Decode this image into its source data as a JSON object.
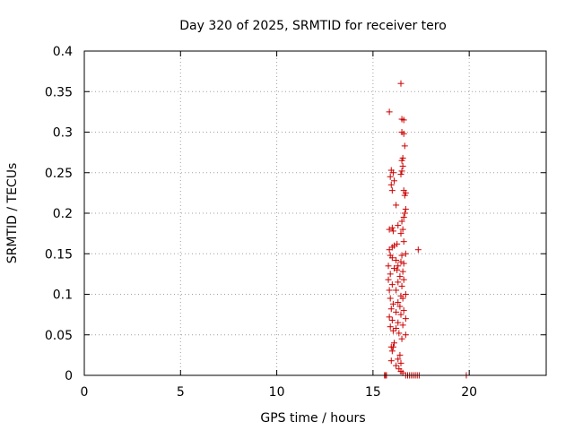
{
  "chart_data": {
    "type": "scatter",
    "title": "Day 320 of 2025, SRMTID for receiver tero",
    "xlabel": "GPS time / hours",
    "ylabel": "SRMTID / TECUs",
    "xlim": [
      0,
      24
    ],
    "ylim": [
      0,
      0.4
    ],
    "xticks": [
      0,
      5,
      10,
      15,
      20
    ],
    "yticks": [
      0,
      0.05,
      0.1,
      0.15,
      0.2,
      0.25,
      0.3,
      0.35,
      0.4
    ],
    "grid": true,
    "marker": "plus",
    "color": "#cc0000",
    "series": [
      {
        "points": [
          [
            15.6,
            0.0
          ],
          [
            15.65,
            0.0
          ],
          [
            15.7,
            0.0
          ],
          [
            16.7,
            0.0
          ],
          [
            16.8,
            0.0
          ],
          [
            16.9,
            0.0
          ],
          [
            17.0,
            0.0
          ],
          [
            17.1,
            0.0
          ],
          [
            17.2,
            0.0
          ],
          [
            17.3,
            0.0
          ],
          [
            17.4,
            0.0
          ],
          [
            19.85,
            0.0
          ],
          [
            16.45,
            0.36
          ],
          [
            15.85,
            0.325
          ],
          [
            16.5,
            0.316
          ],
          [
            16.6,
            0.315
          ],
          [
            16.5,
            0.3
          ],
          [
            16.6,
            0.298
          ],
          [
            16.65,
            0.283
          ],
          [
            16.55,
            0.268
          ],
          [
            16.5,
            0.265
          ],
          [
            16.55,
            0.258
          ],
          [
            16.5,
            0.252
          ],
          [
            16.45,
            0.248
          ],
          [
            15.95,
            0.253
          ],
          [
            16.05,
            0.25
          ],
          [
            15.9,
            0.245
          ],
          [
            16.1,
            0.24
          ],
          [
            15.95,
            0.235
          ],
          [
            16.0,
            0.228
          ],
          [
            16.6,
            0.228
          ],
          [
            16.7,
            0.225
          ],
          [
            16.65,
            0.222
          ],
          [
            16.2,
            0.21
          ],
          [
            16.7,
            0.205
          ],
          [
            16.65,
            0.2
          ],
          [
            16.6,
            0.195
          ],
          [
            16.5,
            0.19
          ],
          [
            16.3,
            0.185
          ],
          [
            16.55,
            0.18
          ],
          [
            15.85,
            0.18
          ],
          [
            16.0,
            0.182
          ],
          [
            16.05,
            0.178
          ],
          [
            16.45,
            0.175
          ],
          [
            16.6,
            0.165
          ],
          [
            16.25,
            0.162
          ],
          [
            16.1,
            0.16
          ],
          [
            16.0,
            0.158
          ],
          [
            15.85,
            0.155
          ],
          [
            17.35,
            0.155
          ],
          [
            16.7,
            0.15
          ],
          [
            16.5,
            0.148
          ],
          [
            15.9,
            0.148
          ],
          [
            16.0,
            0.145
          ],
          [
            16.2,
            0.142
          ],
          [
            16.45,
            0.14
          ],
          [
            16.6,
            0.138
          ],
          [
            16.3,
            0.135
          ],
          [
            15.8,
            0.135
          ],
          [
            16.1,
            0.132
          ],
          [
            16.25,
            0.13
          ],
          [
            16.55,
            0.128
          ],
          [
            15.9,
            0.125
          ],
          [
            16.4,
            0.122
          ],
          [
            15.8,
            0.118
          ],
          [
            16.6,
            0.118
          ],
          [
            16.3,
            0.115
          ],
          [
            16.0,
            0.112
          ],
          [
            16.5,
            0.11
          ],
          [
            15.85,
            0.105
          ],
          [
            16.2,
            0.105
          ],
          [
            16.7,
            0.1
          ],
          [
            16.45,
            0.098
          ],
          [
            15.9,
            0.095
          ],
          [
            16.55,
            0.095
          ],
          [
            16.3,
            0.09
          ],
          [
            16.05,
            0.088
          ],
          [
            16.4,
            0.085
          ],
          [
            15.95,
            0.082
          ],
          [
            16.6,
            0.08
          ],
          [
            16.2,
            0.078
          ],
          [
            16.45,
            0.075
          ],
          [
            15.85,
            0.072
          ],
          [
            16.7,
            0.07
          ],
          [
            16.0,
            0.068
          ],
          [
            16.3,
            0.065
          ],
          [
            16.55,
            0.062
          ],
          [
            15.9,
            0.06
          ],
          [
            16.2,
            0.058
          ],
          [
            16.05,
            0.055
          ],
          [
            16.35,
            0.052
          ],
          [
            16.7,
            0.05
          ],
          [
            16.5,
            0.045
          ],
          [
            16.1,
            0.04
          ],
          [
            15.95,
            0.035
          ],
          [
            16.05,
            0.035
          ],
          [
            16.0,
            0.03
          ],
          [
            16.4,
            0.025
          ],
          [
            16.3,
            0.02
          ],
          [
            15.95,
            0.018
          ],
          [
            16.45,
            0.015
          ],
          [
            16.2,
            0.012
          ],
          [
            16.35,
            0.008
          ],
          [
            16.45,
            0.005
          ],
          [
            16.55,
            0.003
          ]
        ]
      }
    ]
  }
}
